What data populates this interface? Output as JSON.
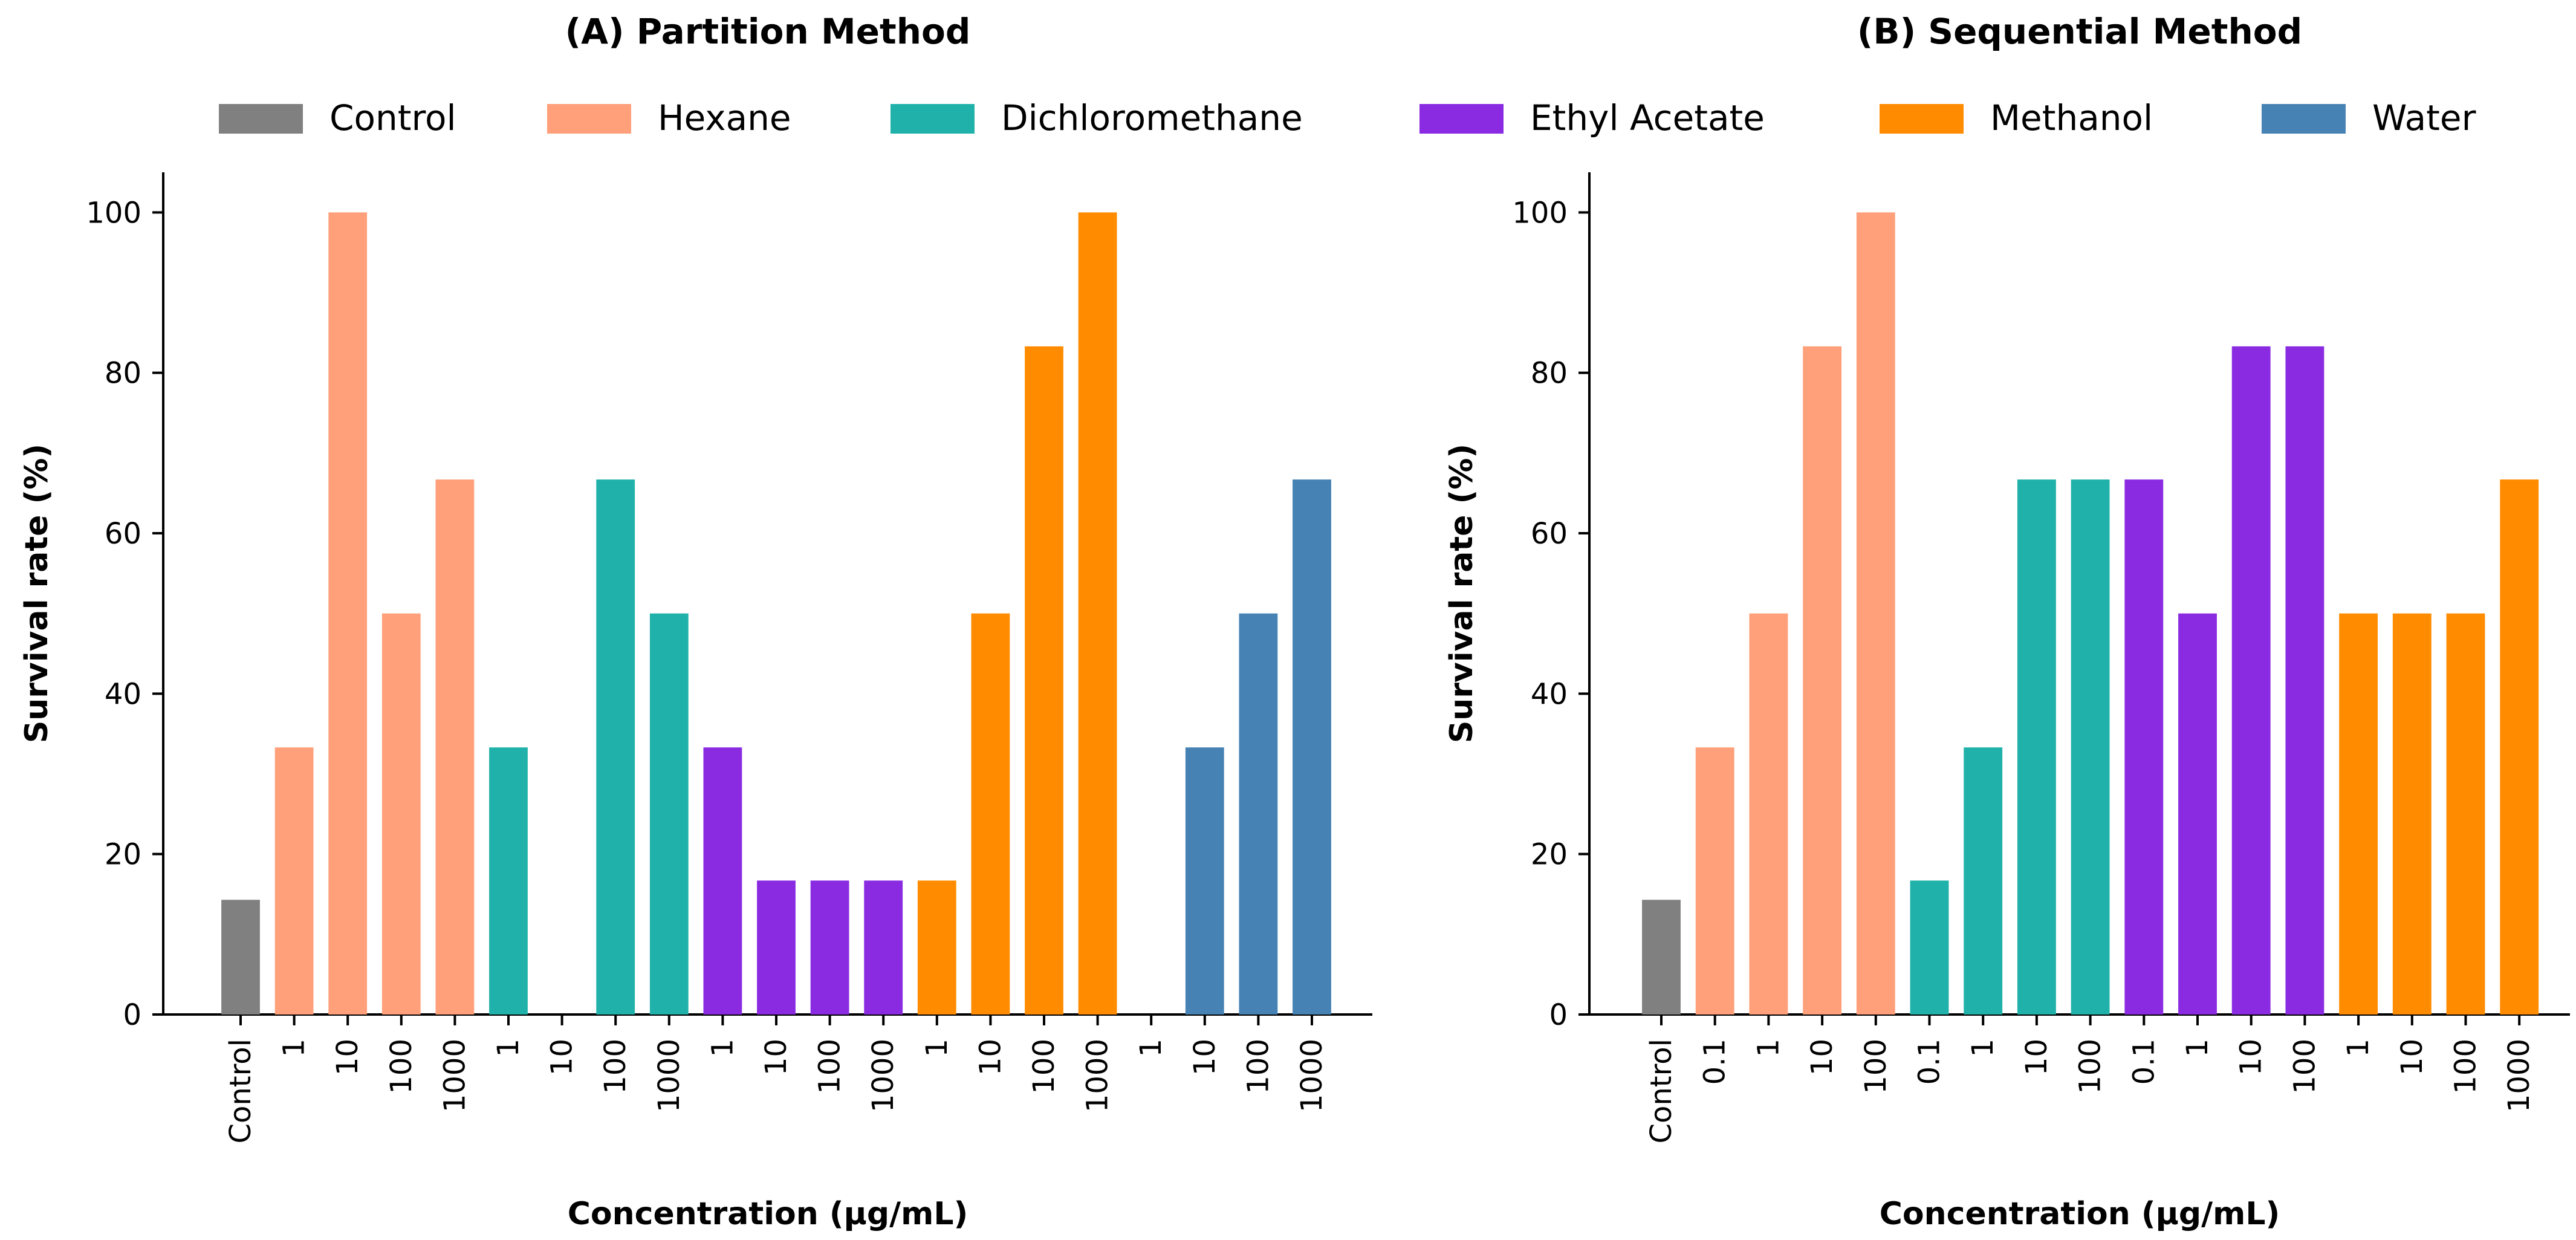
{
  "chart_data": [
    {
      "type": "bar",
      "title": "(A) Partition Method",
      "xlabel": "Concentration (μg/mL)",
      "ylabel": "Survival rate (%)",
      "ylim": [
        0,
        105
      ],
      "yticks": [
        0,
        20,
        40,
        60,
        80,
        100
      ],
      "categories": [
        "Control",
        "1",
        "10",
        "100",
        "1000",
        "1",
        "10",
        "100",
        "1000",
        "1",
        "10",
        "100",
        "1000",
        "1",
        "10",
        "100",
        "1000",
        "1",
        "10",
        "100",
        "1000"
      ],
      "values": [
        14.3,
        33.3,
        100,
        50,
        66.7,
        33.3,
        0,
        66.7,
        50,
        33.3,
        16.7,
        16.7,
        16.7,
        16.7,
        50,
        83.3,
        100,
        0,
        33.3,
        50,
        66.7
      ],
      "groups": [
        "Control",
        "Hexane",
        "Hexane",
        "Hexane",
        "Hexane",
        "Dichloromethane",
        "Dichloromethane",
        "Dichloromethane",
        "Dichloromethane",
        "Ethyl Acetate",
        "Ethyl Acetate",
        "Ethyl Acetate",
        "Ethyl Acetate",
        "Methanol",
        "Methanol",
        "Methanol",
        "Methanol",
        "Water",
        "Water",
        "Water",
        "Water"
      ],
      "grid": false
    },
    {
      "type": "bar",
      "title": "(B) Sequential Method",
      "xlabel": "Concentration (μg/mL)",
      "ylabel": "Survival rate (%)",
      "ylim": [
        0,
        105
      ],
      "yticks": [
        0,
        20,
        40,
        60,
        80,
        100
      ],
      "categories": [
        "Control",
        "0.1",
        "1",
        "10",
        "100",
        "0.1",
        "1",
        "10",
        "100",
        "0.1",
        "1",
        "10",
        "100",
        "1",
        "10",
        "100",
        "1000"
      ],
      "values": [
        14.3,
        33.3,
        50,
        83.3,
        100,
        16.7,
        33.3,
        66.7,
        66.7,
        66.7,
        50,
        83.3,
        83.3,
        50,
        50,
        50,
        66.7
      ],
      "groups": [
        "Control",
        "Hexane",
        "Hexane",
        "Hexane",
        "Hexane",
        "Dichloromethane",
        "Dichloromethane",
        "Dichloromethane",
        "Dichloromethane",
        "Ethyl Acetate",
        "Ethyl Acetate",
        "Ethyl Acetate",
        "Ethyl Acetate",
        "Methanol",
        "Methanol",
        "Methanol",
        "Methanol"
      ],
      "grid": false
    }
  ],
  "legend": {
    "placement": "top-center",
    "entries": [
      {
        "name": "Control",
        "color": "#808080"
      },
      {
        "name": "Hexane",
        "color": "#FFA07A"
      },
      {
        "name": "Dichloromethane",
        "color": "#20B2AA"
      },
      {
        "name": "Ethyl Acetate",
        "color": "#8A2BE2"
      },
      {
        "name": "Methanol",
        "color": "#FF8C00"
      },
      {
        "name": "Water",
        "color": "#4682B4"
      }
    ]
  }
}
